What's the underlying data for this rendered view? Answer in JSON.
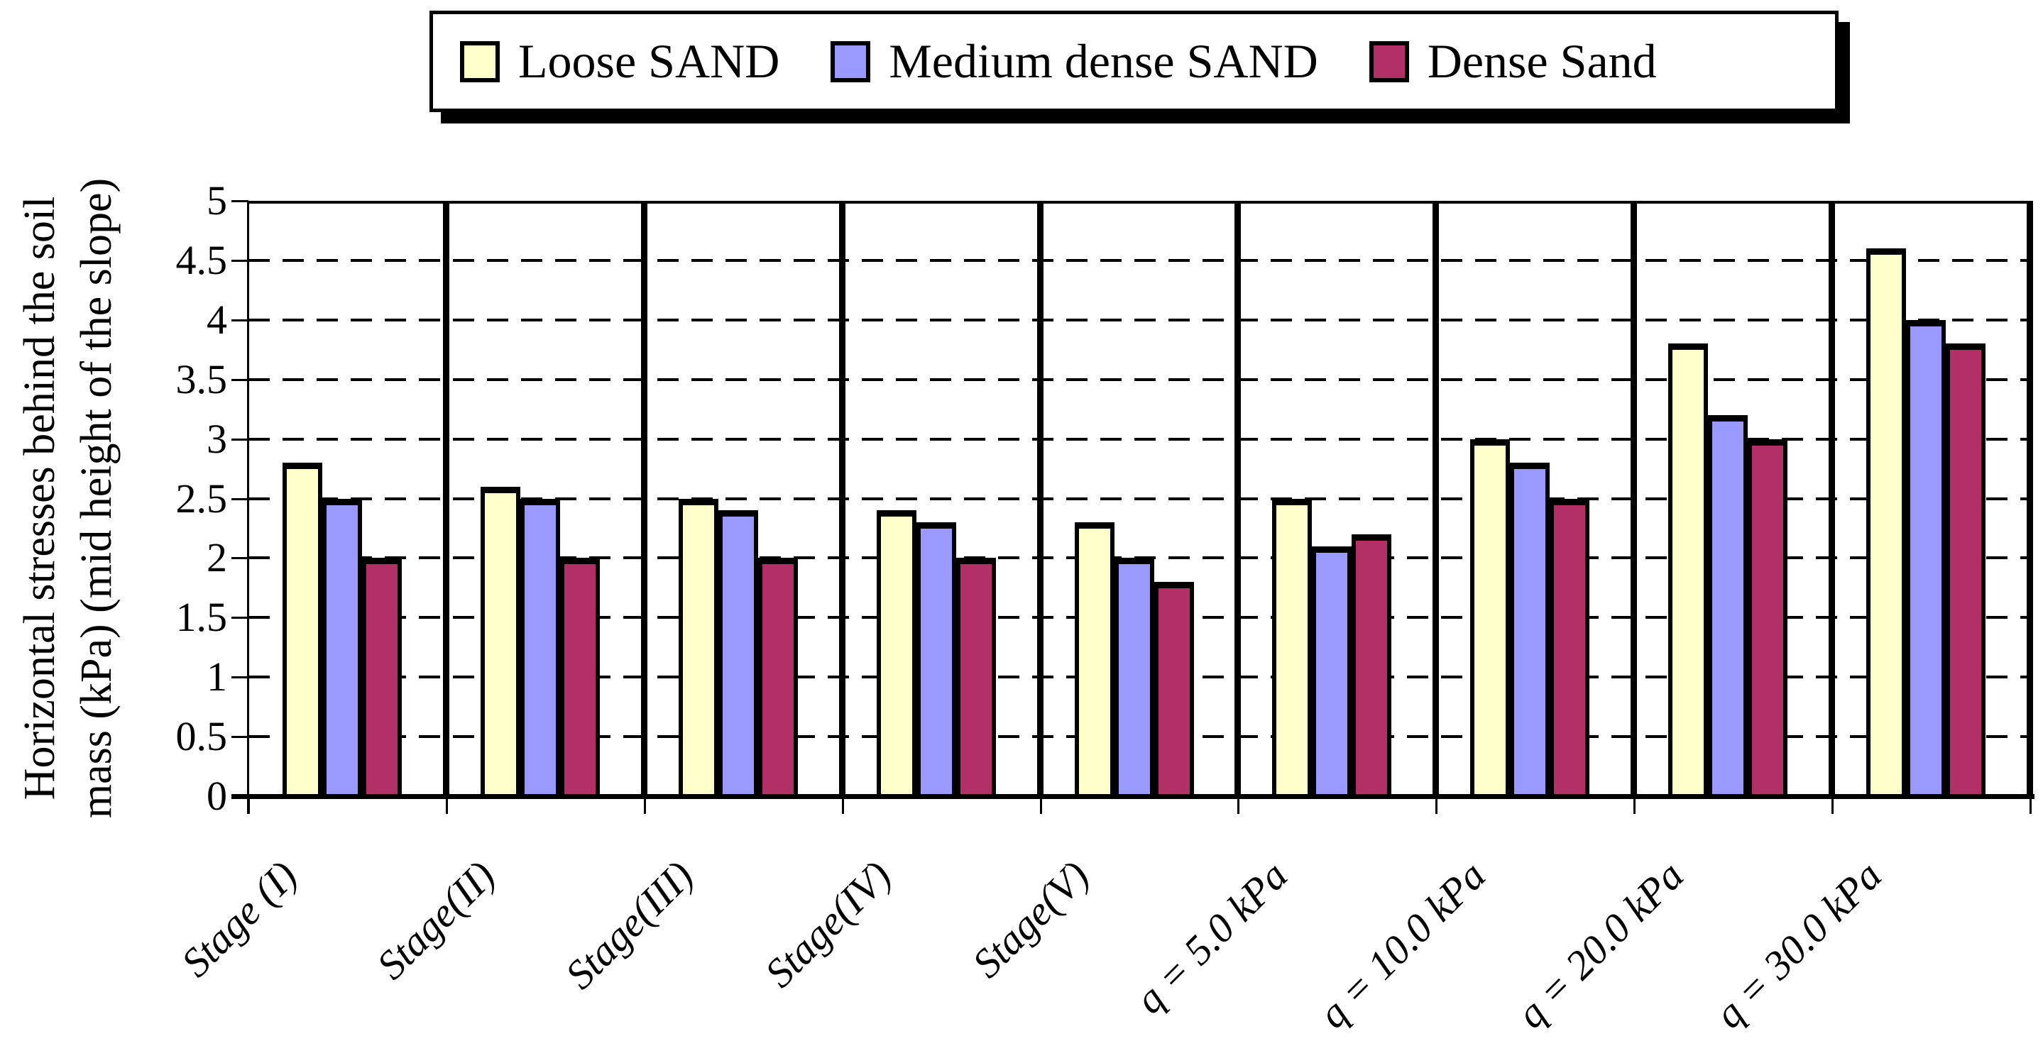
{
  "legend": {
    "items": [
      {
        "label": "Loose SAND"
      },
      {
        "label": "Medium dense SAND"
      },
      {
        "label": "Dense Sand"
      }
    ]
  },
  "y_axis": {
    "title_line1": "Horizontal stresses behind the soil",
    "title_line2": "mass (kPa) (mid height of the slope)",
    "tick_labels": [
      "0",
      "0.5",
      "1",
      "1.5",
      "2",
      "2.5",
      "3",
      "3.5",
      "4",
      "4.5",
      "5"
    ]
  },
  "chart_data": {
    "type": "bar",
    "title": "",
    "xlabel": "",
    "ylabel": "Horizontal stresses behind the soil mass (kPa) (mid height of the slope)",
    "ylim": [
      0,
      5
    ],
    "ytick_step": 0.5,
    "grid": "horizontal dashed lines every 0.5",
    "legend_position": "top",
    "categories": [
      "Stage (I)",
      "Stage(II)",
      "Stage(III)",
      "Stage(IV)",
      "Stage(V)",
      "q = 5.0 kPa",
      "q = 10.0 kPa",
      "q = 20.0 kPa",
      "q = 30.0 kPa"
    ],
    "series": [
      {
        "name": "Loose SAND",
        "color": "#FFFFCC",
        "values": [
          2.8,
          2.6,
          2.5,
          2.4,
          2.3,
          2.5,
          3.0,
          3.8,
          4.6
        ]
      },
      {
        "name": "Medium dense SAND",
        "color": "#9999FF",
        "values": [
          2.5,
          2.5,
          2.4,
          2.3,
          2.0,
          2.1,
          2.8,
          3.2,
          4.0
        ]
      },
      {
        "name": "Dense Sand",
        "color": "#B23066",
        "values": [
          2.0,
          2.0,
          2.0,
          2.0,
          1.8,
          2.2,
          2.5,
          3.0,
          3.8
        ]
      }
    ],
    "category_separators": true,
    "axis_color": "#000000",
    "background_color": "#FFFFFF"
  }
}
